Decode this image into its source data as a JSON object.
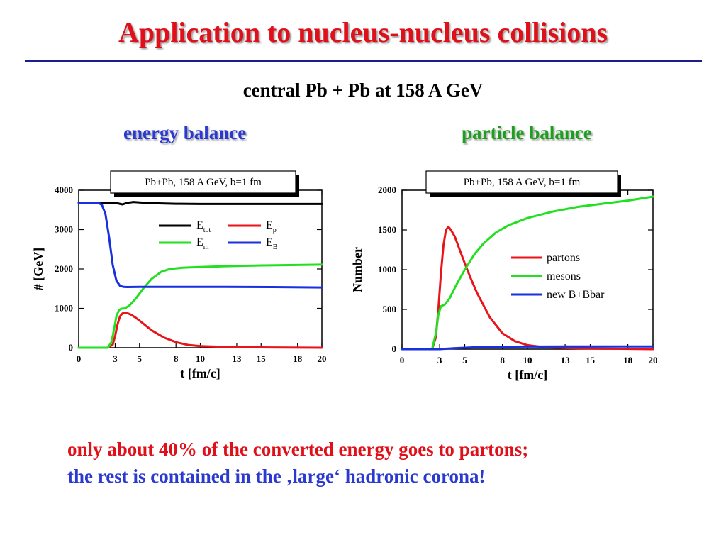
{
  "slide": {
    "title": "Application to nucleus-nucleus collisions",
    "subtitle": "central Pb + Pb at 158 A GeV",
    "left_panel_title": "energy balance",
    "right_panel_title": "particle balance",
    "footer_line1": "only about 40% of the converted energy goes to partons;",
    "footer_line2": "the rest is contained in the ‚large‘ hadronic corona!"
  },
  "chart_data": [
    {
      "type": "line",
      "title": "Pb+Pb,  158 A GeV,  b=1 fm",
      "xlabel": "t [fm/c]",
      "ylabel": "# [GeV]",
      "xlim": [
        0,
        20
      ],
      "ylim": [
        0,
        4000
      ],
      "xticks": [
        0,
        3,
        5,
        8,
        10,
        13,
        15,
        18,
        20
      ],
      "yticks": [
        0,
        1000,
        2000,
        3000,
        4000
      ],
      "grid": false,
      "legend": "top-right, two columns",
      "series": [
        {
          "name": "E",
          "sub": "tot",
          "color": "#000000",
          "x": [
            0,
            2.5,
            3.0,
            3.3,
            3.6,
            4.0,
            4.5,
            5.0,
            6.0,
            8.0,
            10,
            14,
            20
          ],
          "y": [
            3680,
            3680,
            3680,
            3660,
            3640,
            3680,
            3700,
            3690,
            3670,
            3655,
            3650,
            3650,
            3650
          ]
        },
        {
          "name": "E",
          "sub": "p",
          "color": "#e8141a",
          "x": [
            0,
            2.4,
            2.8,
            3.0,
            3.2,
            3.4,
            3.6,
            3.8,
            4.0,
            4.3,
            4.7,
            5.2,
            6.0,
            7.0,
            8.0,
            9.0,
            10,
            12,
            14,
            20
          ],
          "y": [
            0,
            0,
            80,
            300,
            600,
            800,
            870,
            890,
            880,
            840,
            760,
            640,
            440,
            260,
            140,
            70,
            40,
            20,
            10,
            0
          ]
        },
        {
          "name": "E",
          "sub": "m",
          "color": "#20e020",
          "x": [
            0,
            2.4,
            2.7,
            2.9,
            3.1,
            3.3,
            3.5,
            3.8,
            4.2,
            4.7,
            5.3,
            6.0,
            6.8,
            7.5,
            8.5,
            10,
            12,
            15,
            20
          ],
          "y": [
            0,
            0,
            150,
            450,
            800,
            950,
            990,
            1000,
            1080,
            1250,
            1500,
            1750,
            1930,
            2000,
            2030,
            2050,
            2070,
            2090,
            2110
          ]
        },
        {
          "name": "E",
          "sub": "B",
          "color": "#1830e0",
          "x": [
            0,
            1.6,
            1.9,
            2.2,
            2.5,
            2.8,
            3.1,
            3.4,
            3.7,
            4.0,
            5.0,
            8.0,
            12,
            16,
            20
          ],
          "y": [
            3680,
            3680,
            3630,
            3400,
            2800,
            2100,
            1700,
            1570,
            1545,
            1540,
            1545,
            1545,
            1545,
            1540,
            1530
          ]
        }
      ]
    },
    {
      "type": "line",
      "title": "Pb+Pb,  158 A GeV,  b=1 fm",
      "xlabel": "t [fm/c]",
      "ylabel": "Number",
      "xlim": [
        0,
        20
      ],
      "ylim": [
        0,
        2000
      ],
      "xticks": [
        0,
        3,
        5,
        8,
        10,
        13,
        15,
        18,
        20
      ],
      "yticks": [
        0,
        500,
        1000,
        1500,
        2000
      ],
      "grid": false,
      "legend": "center-right",
      "series": [
        {
          "name": "partons",
          "color": "#e8141a",
          "x": [
            0,
            2.4,
            2.7,
            2.9,
            3.1,
            3.3,
            3.5,
            3.7,
            3.9,
            4.2,
            4.6,
            5.0,
            5.5,
            6.0,
            7.0,
            8.0,
            9.0,
            10,
            11,
            12,
            14,
            20
          ],
          "y": [
            0,
            0,
            150,
            500,
            950,
            1300,
            1500,
            1540,
            1500,
            1420,
            1250,
            1080,
            880,
            700,
            400,
            200,
            100,
            50,
            30,
            20,
            10,
            0
          ]
        },
        {
          "name": "mesons",
          "color": "#20e020",
          "x": [
            0,
            2.4,
            2.7,
            2.9,
            3.1,
            3.4,
            3.8,
            4.3,
            5.0,
            5.8,
            6.5,
            7.5,
            8.5,
            10,
            12,
            14,
            16,
            18,
            20
          ],
          "y": [
            0,
            0,
            200,
            430,
            540,
            560,
            640,
            800,
            1000,
            1200,
            1330,
            1470,
            1560,
            1650,
            1730,
            1790,
            1830,
            1870,
            1920
          ]
        },
        {
          "name": "new B+Bbar",
          "color": "#1830e0",
          "x": [
            0,
            3.0,
            4.0,
            5.0,
            6.0,
            8.0,
            10,
            13,
            20
          ],
          "y": [
            0,
            0,
            10,
            18,
            25,
            30,
            32,
            33,
            33
          ]
        }
      ]
    }
  ]
}
